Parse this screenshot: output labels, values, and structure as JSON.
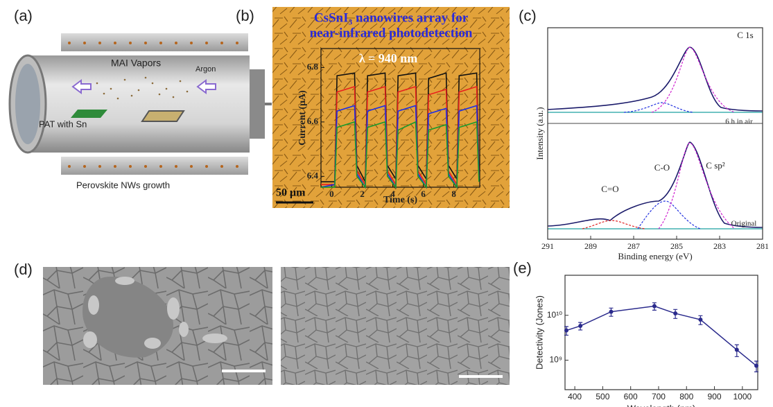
{
  "panels": {
    "a": {
      "label": "(a)",
      "texts": [
        "MAI Vapors",
        "Argon",
        "PAT with Sn",
        "Perovskite NWs growth"
      ]
    },
    "d": {
      "label": "(d)"
    }
  },
  "chart_data": [
    {
      "type": "line",
      "label": "(b)",
      "title": [
        "CsSnI₃ nanowires array for",
        "near-infrared photodetection"
      ],
      "annotation": "λ = 940 nm",
      "scale_bar": "50 μm",
      "xlabel": "Time (s)",
      "ylabel": "Current (μA)",
      "xlim": [
        -0.7,
        9.7
      ],
      "ylim": [
        6.36,
        6.87
      ],
      "xticks": [
        0,
        2,
        4,
        6,
        8
      ],
      "yticks": [
        6.4,
        6.6,
        6.8
      ],
      "x": [
        -0.7,
        0.2,
        0.35,
        1.5,
        1.65,
        2.2,
        2.35,
        3.5,
        3.65,
        4.2,
        4.35,
        5.5,
        5.65,
        6.2,
        6.35,
        7.5,
        7.65,
        8.2,
        8.35,
        9.5,
        9.65
      ],
      "series": [
        {
          "color": "#111111",
          "values": [
            6.38,
            6.38,
            6.77,
            6.78,
            6.44,
            6.38,
            6.77,
            6.78,
            6.44,
            6.39,
            6.77,
            6.78,
            6.44,
            6.39,
            6.76,
            6.78,
            6.44,
            6.39,
            6.77,
            6.78,
            6.42
          ]
        },
        {
          "color": "#e8201c",
          "values": [
            6.37,
            6.37,
            6.71,
            6.73,
            6.42,
            6.37,
            6.71,
            6.73,
            6.42,
            6.37,
            6.71,
            6.73,
            6.42,
            6.37,
            6.7,
            6.72,
            6.42,
            6.37,
            6.71,
            6.73,
            6.4
          ]
        },
        {
          "color": "#1c2ee8",
          "values": [
            6.36,
            6.37,
            6.64,
            6.66,
            6.41,
            6.36,
            6.64,
            6.66,
            6.41,
            6.36,
            6.64,
            6.66,
            6.41,
            6.36,
            6.63,
            6.65,
            6.41,
            6.36,
            6.64,
            6.66,
            6.39
          ]
        },
        {
          "color": "#1a9a2c",
          "values": [
            6.36,
            6.36,
            6.58,
            6.6,
            6.4,
            6.36,
            6.58,
            6.6,
            6.4,
            6.36,
            6.57,
            6.6,
            6.4,
            6.36,
            6.57,
            6.59,
            6.4,
            6.36,
            6.58,
            6.6,
            6.38
          ]
        }
      ]
    },
    {
      "type": "line",
      "label": "(c)",
      "xlabel": "Binding energy (eV)",
      "ylabel": "Intensity (a.u.)",
      "xlim": [
        291,
        281
      ],
      "xticks": [
        291,
        289,
        287,
        285,
        283,
        281
      ],
      "annotations": [
        "C 1s",
        "6 h in air",
        "Original",
        "C=O",
        "C-O",
        "C sp²"
      ]
    },
    {
      "type": "line",
      "label": "(e)",
      "xlabel": "Wavelength (nm)",
      "ylabel": "Detectivity (Jones)",
      "log_y": true,
      "color": "#2a2a8c",
      "xlim": [
        365,
        1055
      ],
      "ylim": [
        220000000,
        78000000000
      ],
      "xticks": [
        400,
        500,
        600,
        700,
        800,
        900,
        1000
      ],
      "yticks": [
        {
          "value": 1000000000,
          "label": "10⁹"
        },
        {
          "value": 10000000000,
          "label": "10¹⁰"
        }
      ],
      "x": [
        370,
        420,
        530,
        685,
        760,
        850,
        980,
        1050
      ],
      "values": [
        4600000000,
        5800000000,
        12000000000,
        16000000000,
        11000000000,
        8000000000,
        1700000000,
        750000000
      ],
      "errors": [
        1000000000,
        1100000000,
        2500000000,
        3000000000,
        2500000000,
        1800000000,
        500000000,
        200000000
      ]
    }
  ]
}
